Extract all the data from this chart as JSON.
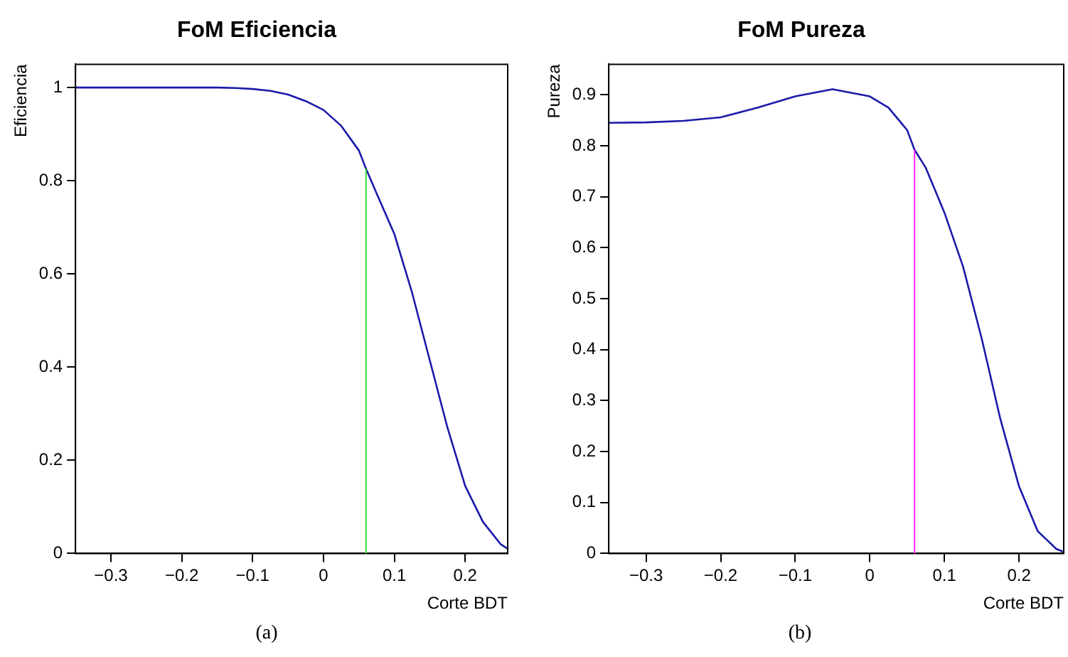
{
  "chart_data": [
    {
      "type": "line",
      "title": "FoM Eficiencia",
      "xlabel": "Corte BDT",
      "ylabel": "Eficiencia",
      "annotations": [
        "(a)"
      ],
      "grid": false,
      "legend": false,
      "marker": "none",
      "x": [
        -0.35,
        -0.15,
        -0.125,
        -0.1,
        -0.075,
        -0.05,
        -0.025,
        0,
        0.025,
        0.05,
        0.06,
        0.075,
        0.1,
        0.125,
        0.15,
        0.175,
        0.2,
        0.225,
        0.25,
        0.26
      ],
      "series": [
        {
          "color": "#1a1aaa",
          "values": [
            1,
            1,
            0.999,
            0.997,
            0.993,
            0.985,
            0.971,
            0.952,
            0.918,
            0.865,
            0.826,
            0.773,
            0.686,
            0.56,
            0.415,
            0.27,
            0.145,
            0.068,
            0.02,
            0.01
          ]
        }
      ],
      "ref_lines": [
        {
          "axis": "x",
          "value": 0.06,
          "color": "#33dd33"
        }
      ],
      "xlim": [
        -0.35,
        0.26
      ],
      "xticks": [
        -0.3,
        -0.2,
        -0.1,
        0,
        0.1,
        0.2
      ],
      "ylim": [
        0,
        1.05
      ],
      "yticks": [
        0,
        0.2,
        0.4,
        0.6,
        0.8,
        1
      ]
    },
    {
      "type": "line",
      "title": "FoM Pureza",
      "xlabel": "Corte BDT",
      "ylabel": "Pureza",
      "annotations": [
        "(b)"
      ],
      "grid": false,
      "legend": false,
      "marker": "none",
      "x": [
        -0.35,
        -0.3,
        -0.25,
        -0.2,
        -0.15,
        -0.1,
        -0.05,
        0,
        0.025,
        0.05,
        0.06,
        0.075,
        0.1,
        0.125,
        0.15,
        0.175,
        0.2,
        0.225,
        0.25,
        0.26
      ],
      "series": [
        {
          "color": "#1a1aaa",
          "values": [
            0.845,
            0.846,
            0.849,
            0.856,
            0.875,
            0.897,
            0.911,
            0.897,
            0.875,
            0.831,
            0.792,
            0.757,
            0.669,
            0.563,
            0.422,
            0.264,
            0.132,
            0.044,
            0.009,
            0.003
          ]
        }
      ],
      "ref_lines": [
        {
          "axis": "x",
          "value": 0.06,
          "color": "#ff22ff"
        }
      ],
      "xlim": [
        -0.35,
        0.26
      ],
      "xticks": [
        -0.3,
        -0.2,
        -0.1,
        0,
        0.1,
        0.2
      ],
      "ylim": [
        0,
        0.96
      ],
      "yticks": [
        0,
        0.1,
        0.2,
        0.3,
        0.4,
        0.5,
        0.6,
        0.7,
        0.8,
        0.9
      ]
    }
  ]
}
